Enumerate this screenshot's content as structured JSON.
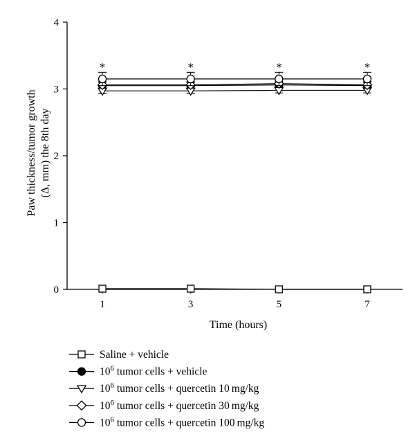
{
  "chart_data": {
    "type": "line",
    "xlabel": "Time (hours)",
    "ylabel_lines": [
      "Paw thickness/tumor growth",
      "(Δ, mm) the 8th day"
    ],
    "x": [
      1,
      3,
      5,
      7
    ],
    "x_ticks": [
      "1",
      "3",
      "5",
      "7"
    ],
    "y_ticks": [
      "0",
      "1",
      "2",
      "3",
      "4"
    ],
    "ylim": [
      0,
      4
    ],
    "xlim": [
      0.2,
      7.8
    ],
    "grid": false,
    "legend_position": "bottom",
    "significance_marker": "*",
    "significance_at": [
      1,
      3,
      5,
      7
    ],
    "series": [
      {
        "name_prefix": "",
        "name_sup": "",
        "name_rest": "Saline + vehicle",
        "marker": "square-open",
        "values": [
          0.01,
          0.01,
          0.0,
          0.0
        ],
        "errors": [
          0,
          0,
          0,
          0
        ]
      },
      {
        "name_prefix": "10",
        "name_sup": "6",
        "name_rest": " tumor cells + vehicle",
        "marker": "circle-filled",
        "values": [
          3.05,
          3.05,
          3.06,
          3.05
        ],
        "errors": [
          0.05,
          0.05,
          0.05,
          0.05
        ]
      },
      {
        "name_prefix": "10",
        "name_sup": "6",
        "name_rest": " tumor cells + quercetin 10 mg/kg",
        "marker": "triangle-down-open",
        "values": [
          2.97,
          2.97,
          2.98,
          2.98
        ],
        "errors": [
          0.04,
          0.04,
          0.04,
          0.04
        ]
      },
      {
        "name_prefix": "10",
        "name_sup": "6",
        "name_rest": " tumor cells + quercetin 30 mg/kg",
        "marker": "diamond-open",
        "values": [
          3.06,
          3.06,
          3.08,
          3.06
        ],
        "errors": [
          0.05,
          0.05,
          0.05,
          0.05
        ]
      },
      {
        "name_prefix": "10",
        "name_sup": "6",
        "name_rest": " tumor cells + quercetin 100 mg/kg",
        "marker": "circle-open",
        "values": [
          3.15,
          3.15,
          3.15,
          3.15
        ],
        "errors": [
          0.1,
          0.1,
          0.1,
          0.1
        ]
      }
    ]
  }
}
